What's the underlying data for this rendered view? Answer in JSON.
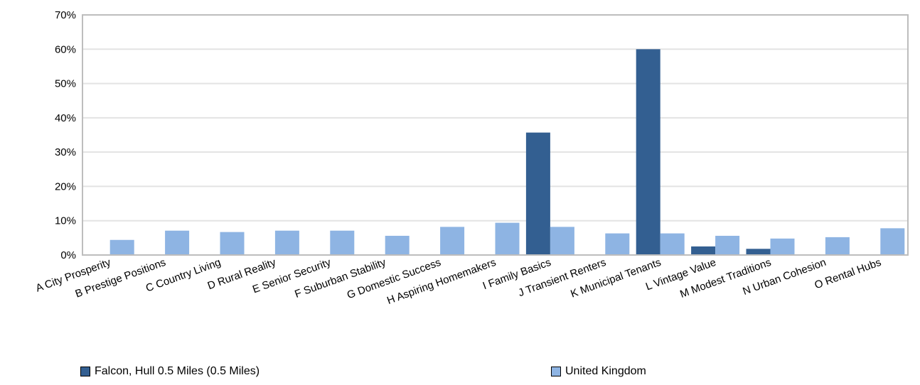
{
  "chart_data": {
    "type": "bar",
    "categories": [
      "A City Prosperity",
      "B Prestige Positions",
      "C Country Living",
      "D Rural Reality",
      "E Senior Security",
      "F Suburban Stability",
      "G Domestic Success",
      "H Aspiring Homemakers",
      "I Family Basics",
      "J Transient Renters",
      "K Municipal Tenants",
      "L Vintage Value",
      "M Modest Traditions",
      "N Urban Cohesion",
      "O Rental Hubs"
    ],
    "series": [
      {
        "name": "Falcon, Hull 0.5 Miles (0.5 Miles)",
        "color": "#335f91",
        "values": [
          0,
          0,
          0,
          0,
          0,
          0,
          0,
          0,
          35.7,
          0,
          60.0,
          2.5,
          1.8,
          0,
          0
        ]
      },
      {
        "name": "United Kingdom",
        "color": "#8eb4e3",
        "values": [
          4.4,
          7.1,
          6.7,
          7.1,
          7.1,
          5.6,
          8.2,
          9.4,
          8.2,
          6.3,
          6.3,
          5.6,
          4.8,
          5.2,
          7.8
        ]
      }
    ],
    "yticks": [
      "0%",
      "10%",
      "20%",
      "30%",
      "40%",
      "50%",
      "60%",
      "70%"
    ],
    "ylim": [
      0,
      70
    ],
    "grid": true,
    "legend_position": "bottom"
  }
}
